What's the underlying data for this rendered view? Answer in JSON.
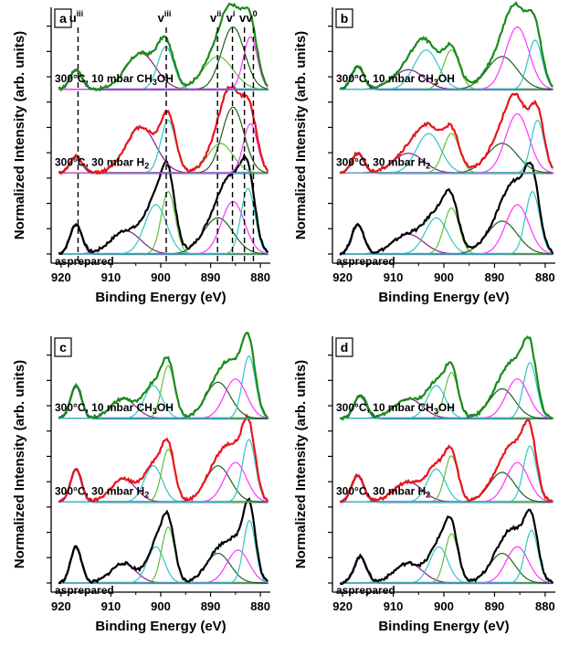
{
  "figure": {
    "ylabel": "Normalized Intensity (arb. units)",
    "xlabel": "Binding Energy (eV)",
    "colors": {
      "black": "#000000",
      "red": "#e8141c",
      "green": "#1a8a1a",
      "blue": "#1f3f8f",
      "purple": "#8a1a8a",
      "teal": "#33c4c4",
      "magenta": "#ff33ff",
      "darkgreen": "#1f5f1f",
      "lightgreen": "#5fbf3f",
      "brown": "#8a6a2a"
    }
  },
  "chart_data": [
    {
      "panel": "a",
      "type": "line",
      "xlabel": "Binding Energy (eV)",
      "ylabel": "Normalized Intensity (arb. units)",
      "xlim": [
        922,
        878
      ],
      "xticks": [
        920,
        910,
        900,
        890,
        880
      ],
      "yticks": [
        0,
        1,
        2,
        3,
        4,
        5,
        6,
        7,
        8,
        9
      ],
      "series": [
        {
          "name": "asprepared",
          "offset": 0,
          "amp": 2.6,
          "color": "black",
          "peaks": [
            [
              917,
              0.45,
              1.2
            ],
            [
              907,
              0.35,
              3
            ],
            [
              901,
              0.75,
              2.2
            ],
            [
              898.5,
              0.95,
              1.4
            ],
            [
              888.5,
              0.55,
              3
            ],
            [
              885.5,
              0.8,
              2.3
            ],
            [
              882.5,
              1.0,
              1.4
            ]
          ]
        },
        {
          "name": "300°C, 30 mbar H2",
          "offset": 3.2,
          "amp": 2.6,
          "color": "red",
          "peaks": [
            [
              917,
              0.25,
              1.2
            ],
            [
              904,
              0.7,
              3
            ],
            [
              898.5,
              0.8,
              1.5
            ],
            [
              888,
              0.45,
              2.5
            ],
            [
              885.5,
              1.0,
              2.2
            ],
            [
              882,
              0.75,
              1.4
            ]
          ]
        },
        {
          "name": "300°C, 10 mbar CH3OH",
          "offset": 6.5,
          "amp": 2.6,
          "color": "green",
          "peaks": [
            [
              917,
              0.3,
              1.2
            ],
            [
              904,
              0.55,
              3
            ],
            [
              899,
              0.65,
              1.6
            ],
            [
              888.5,
              0.5,
              3
            ],
            [
              885.5,
              0.95,
              2.3
            ],
            [
              882,
              0.8,
              1.4
            ]
          ]
        }
      ],
      "annotations": [
        {
          "label": "u",
          "sup": "iii",
          "x": 916.6
        },
        {
          "label": "v",
          "sup": "iii",
          "x": 898.9
        },
        {
          "label": "v",
          "sup": "ii",
          "x": 888.6
        },
        {
          "label": "v",
          "sup": "i",
          "x": 885.6
        },
        {
          "label": "v",
          "sup": "",
          "x": 883.2
        },
        {
          "label": "v",
          "sup": "0",
          "x": 881.4
        }
      ]
    },
    {
      "panel": "b",
      "type": "line",
      "xlabel": "Binding Energy (eV)",
      "ylabel": "Normalized Intensity (arb. units)",
      "xlim": [
        922,
        878
      ],
      "xticks": [
        920,
        910,
        900,
        890,
        880
      ],
      "yticks": [
        0,
        1,
        2,
        3,
        4,
        5,
        6,
        7,
        8,
        9
      ],
      "series": [
        {
          "name": "asprepared",
          "offset": 0,
          "amp": 2.6,
          "color": "black",
          "peaks": [
            [
              917,
              0.45,
              1.2
            ],
            [
              907,
              0.3,
              3
            ],
            [
              901.5,
              0.55,
              2.2
            ],
            [
              898.5,
              0.7,
              1.5
            ],
            [
              888.5,
              0.5,
              3
            ],
            [
              885.5,
              0.75,
              2.3
            ],
            [
              882.5,
              0.95,
              1.4
            ]
          ]
        },
        {
          "name": "300°C, 30 mbar H2",
          "offset": 3.2,
          "amp": 2.6,
          "color": "red",
          "peaks": [
            [
              917,
              0.3,
              1.2
            ],
            [
              907,
              0.3,
              3
            ],
            [
              903,
              0.6,
              2.4
            ],
            [
              898.5,
              0.6,
              1.6
            ],
            [
              888.5,
              0.45,
              3
            ],
            [
              885.5,
              0.9,
              2.3
            ],
            [
              881.5,
              0.8,
              1.3
            ]
          ]
        },
        {
          "name": "300°C, 10 mbar CH3OH",
          "offset": 6.5,
          "amp": 2.6,
          "color": "green",
          "peaks": [
            [
              917,
              0.35,
              1.2
            ],
            [
              907,
              0.3,
              3
            ],
            [
              903.5,
              0.6,
              2.4
            ],
            [
              898.5,
              0.6,
              1.6
            ],
            [
              888.5,
              0.5,
              3
            ],
            [
              885.5,
              0.95,
              2.3
            ],
            [
              882,
              0.75,
              1.4
            ]
          ]
        }
      ]
    },
    {
      "panel": "c",
      "type": "line",
      "xlabel": "Binding Energy (eV)",
      "ylabel": "Normalized Intensity (arb. units)",
      "xlim": [
        922,
        878
      ],
      "xticks": [
        920,
        910,
        900,
        890,
        880
      ],
      "yticks": [
        0,
        1,
        2,
        3,
        4,
        5,
        6,
        7,
        8,
        9
      ],
      "series": [
        {
          "name": "asprepared",
          "offset": 0,
          "amp": 2.6,
          "color": "black",
          "peaks": [
            [
              917,
              0.55,
              1.1
            ],
            [
              907.5,
              0.3,
              2.5
            ],
            [
              901,
              0.55,
              1.7
            ],
            [
              898.5,
              0.85,
              1.3
            ],
            [
              888.5,
              0.45,
              2.5
            ],
            [
              884.5,
              0.5,
              2.2
            ],
            [
              882.2,
              0.95,
              1.2
            ]
          ]
        },
        {
          "name": "300°C, 30 mbar H2",
          "offset": 3.2,
          "amp": 2.6,
          "color": "red",
          "peaks": [
            [
              917,
              0.5,
              1.1
            ],
            [
              907.5,
              0.35,
              2.5
            ],
            [
              901.5,
              0.55,
              1.8
            ],
            [
              898.5,
              0.8,
              1.3
            ],
            [
              888.5,
              0.55,
              2.5
            ],
            [
              885,
              0.6,
              2.2
            ],
            [
              882.3,
              0.95,
              1.3
            ]
          ]
        },
        {
          "name": "300°C, 10 mbar CH3OH",
          "offset": 6.5,
          "amp": 2.6,
          "color": "green",
          "peaks": [
            [
              917,
              0.5,
              1.1
            ],
            [
              907.5,
              0.3,
              2.5
            ],
            [
              901.5,
              0.5,
              1.8
            ],
            [
              898.5,
              0.8,
              1.3
            ],
            [
              888.5,
              0.55,
              2.5
            ],
            [
              885,
              0.6,
              2.2
            ],
            [
              882.3,
              0.95,
              1.3
            ]
          ]
        }
      ]
    },
    {
      "panel": "d",
      "type": "line",
      "xlabel": "Binding Energy (eV)",
      "ylabel": "Normalized Intensity (arb. units)",
      "xlim": [
        922,
        878
      ],
      "xticks": [
        920,
        910,
        900,
        890,
        880
      ],
      "yticks": [
        0,
        1,
        2,
        3,
        4,
        5,
        6,
        7,
        8,
        9
      ],
      "series": [
        {
          "name": "asprepared",
          "offset": 0,
          "amp": 2.6,
          "color": "black",
          "peaks": [
            [
              916.5,
              0.4,
              1.2
            ],
            [
              907,
              0.3,
              2.8
            ],
            [
              901,
              0.55,
              1.8
            ],
            [
              898.5,
              0.75,
              1.3
            ],
            [
              888.5,
              0.45,
              2.5
            ],
            [
              885.5,
              0.55,
              2.2
            ],
            [
              882.7,
              0.8,
              1.3
            ]
          ]
        },
        {
          "name": "300°C, 30 mbar H2",
          "offset": 3.2,
          "amp": 2.6,
          "color": "red",
          "peaks": [
            [
              917,
              0.4,
              1.2
            ],
            [
              907,
              0.3,
              2.8
            ],
            [
              901.5,
              0.5,
              1.8
            ],
            [
              898.5,
              0.7,
              1.3
            ],
            [
              888.5,
              0.45,
              2.5
            ],
            [
              885.5,
              0.6,
              2.2
            ],
            [
              883,
              0.85,
              1.3
            ]
          ]
        },
        {
          "name": "300°C, 10 mbar CH3OH",
          "offset": 6.5,
          "amp": 2.6,
          "color": "green",
          "peaks": [
            [
              916.5,
              0.35,
              1.2
            ],
            [
              907,
              0.3,
              2.8
            ],
            [
              901.5,
              0.5,
              1.8
            ],
            [
              898.5,
              0.7,
              1.3
            ],
            [
              888.5,
              0.45,
              2.5
            ],
            [
              885.5,
              0.6,
              2.2
            ],
            [
              883,
              0.85,
              1.3
            ]
          ]
        }
      ]
    }
  ]
}
